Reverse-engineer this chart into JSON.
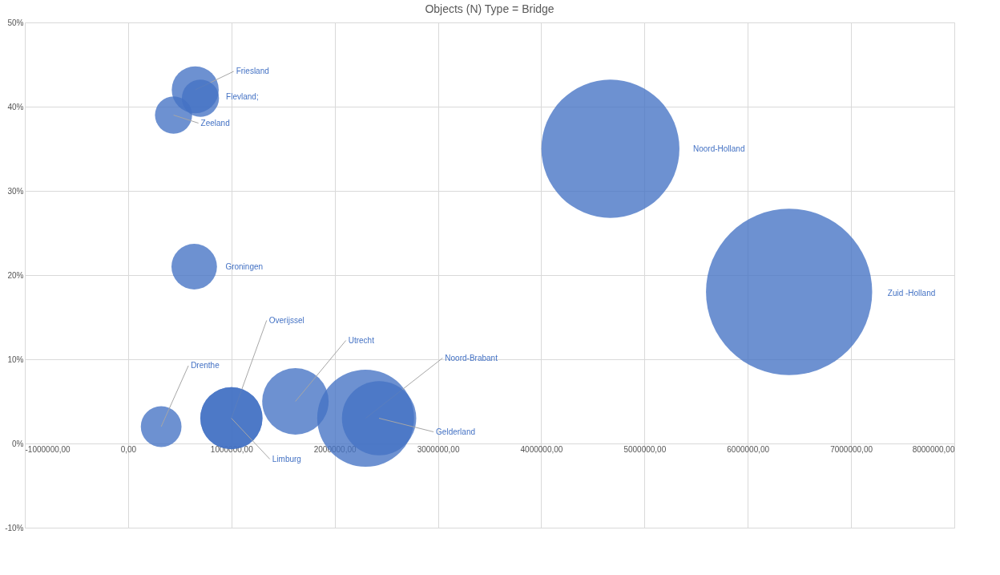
{
  "chart_data": {
    "type": "bubble",
    "title": "Objects (N) Type = Bridge",
    "xlim": [
      -1000000,
      8000000
    ],
    "xticks": [
      {
        "value": -1000000,
        "label": "-1000000,00"
      },
      {
        "value": 0,
        "label": "0,00"
      },
      {
        "value": 1000000,
        "label": "1000000,00"
      },
      {
        "value": 2000000,
        "label": "2000000,00"
      },
      {
        "value": 3000000,
        "label": "3000000,00"
      },
      {
        "value": 4000000,
        "label": "4000000,00"
      },
      {
        "value": 5000000,
        "label": "5000000,00"
      },
      {
        "value": 6000000,
        "label": "6000000,00"
      },
      {
        "value": 7000000,
        "label": "7000000,00"
      },
      {
        "value": 8000000,
        "label": "8000000,00"
      }
    ],
    "ylim": [
      -10,
      50
    ],
    "yticks": [
      {
        "value": -10,
        "label": "-10%"
      },
      {
        "value": 0,
        "label": "0%"
      },
      {
        "value": 10,
        "label": "10%"
      },
      {
        "value": 20,
        "label": "20%"
      },
      {
        "value": 30,
        "label": "30%"
      },
      {
        "value": 40,
        "label": "40%"
      },
      {
        "value": 50,
        "label": "50%"
      }
    ],
    "grid": true,
    "series": [
      {
        "name": "Friesland",
        "color": "#4472c4",
        "x": [
          650000
        ],
        "values": [
          42
        ],
        "sizes": [
          0.08
        ]
      },
      {
        "name": "Flevland;",
        "color": "#4472c4",
        "x": [
          700000
        ],
        "values": [
          41
        ],
        "sizes": [
          0.05
        ]
      },
      {
        "name": "Zeeland",
        "color": "#4472c4",
        "x": [
          440000
        ],
        "values": [
          39
        ],
        "sizes": [
          0.05
        ]
      },
      {
        "name": "Groningen",
        "color": "#4472c4",
        "x": [
          640000
        ],
        "values": [
          21
        ],
        "sizes": [
          0.075
        ]
      },
      {
        "name": "Noord-Holland",
        "color": "#4472c4",
        "x": [
          4670000
        ],
        "values": [
          35
        ],
        "sizes": [
          0.69
        ]
      },
      {
        "name": "Zuid -Holland",
        "color": "#4472c4",
        "x": [
          6400000
        ],
        "values": [
          18
        ],
        "sizes": [
          1
        ]
      },
      {
        "name": "Drenthe",
        "color": "#4472c4",
        "x": [
          320000
        ],
        "values": [
          2
        ],
        "sizes": [
          0.06
        ]
      },
      {
        "name": "Overijssel",
        "color": "#4472c4",
        "x": [
          1000000
        ],
        "values": [
          3
        ],
        "sizes": [
          0.14
        ]
      },
      {
        "name": "Limburg",
        "color": "#4472c4",
        "x": [
          1000000
        ],
        "values": [
          3
        ],
        "sizes": [
          0.14
        ]
      },
      {
        "name": "Utrecht",
        "color": "#4472c4",
        "x": [
          1620000
        ],
        "values": [
          5
        ],
        "sizes": [
          0.16
        ]
      },
      {
        "name": "Noord-Brabant",
        "color": "#4472c4",
        "x": [
          2300000
        ],
        "values": [
          3
        ],
        "sizes": [
          0.34
        ]
      },
      {
        "name": "Gelderland",
        "color": "#4472c4",
        "x": [
          2430000
        ],
        "values": [
          3
        ],
        "sizes": [
          0.2
        ]
      }
    ]
  }
}
